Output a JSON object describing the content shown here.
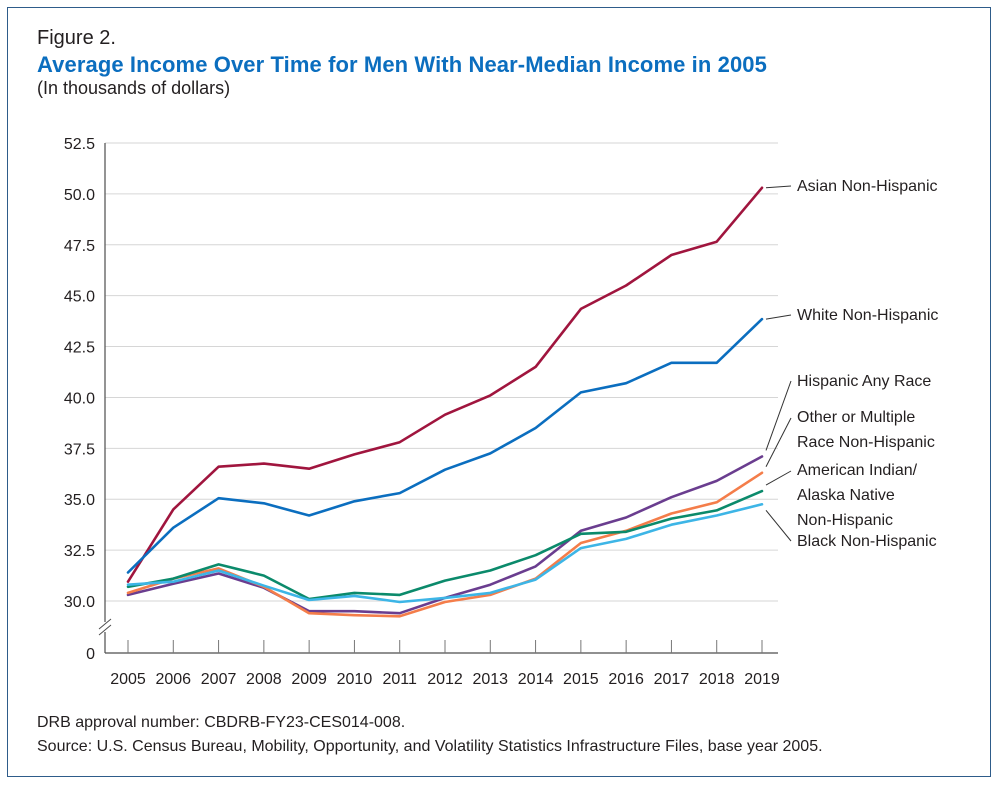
{
  "header": {
    "figure_label": "Figure 2.",
    "title": "Average Income Over Time for Men With Near-Median Income in 2005",
    "subtitle": "(In thousands of dollars)"
  },
  "footer": {
    "approval": "DRB approval number: CBDRB-FY23-CES014-008.",
    "source": "Source: U.S. Census Bureau, Mobility, Opportunity, and Volatility Statistics Infrastructure Files, base year 2005."
  },
  "chart_data": {
    "type": "line",
    "title": "Average Income Over Time for Men With Near-Median Income in 2005",
    "subtitle": "(In thousands of dollars)",
    "xlabel": "",
    "ylabel": "",
    "x": [
      "2005",
      "2006",
      "2007",
      "2008",
      "2009",
      "2010",
      "2011",
      "2012",
      "2013",
      "2014",
      "2015",
      "2016",
      "2017",
      "2018",
      "2019"
    ],
    "y_ticks": [
      "52.5",
      "50.0",
      "47.5",
      "45.0",
      "42.5",
      "40.0",
      "37.5",
      "35.0",
      "32.5",
      "30.0"
    ],
    "y_tick_values": [
      52.5,
      50.0,
      47.5,
      45.0,
      42.5,
      40.0,
      37.5,
      35.0,
      32.5,
      30.0
    ],
    "y_zero_label": "0",
    "ylim": [
      29.0,
      52.5
    ],
    "axis_break": true,
    "grid": true,
    "legend_placement": "right, direct labels at line ends",
    "series": [
      {
        "name": "Asian Non-Hispanic",
        "color": "#a0153e",
        "values": [
          30.95,
          34.5,
          36.6,
          36.75,
          36.5,
          37.2,
          37.8,
          39.15,
          40.1,
          41.5,
          44.35,
          45.5,
          47.0,
          47.65,
          50.3
        ]
      },
      {
        "name": "White Non-Hispanic",
        "color": "#0b6ebf",
        "values": [
          31.4,
          33.6,
          35.05,
          34.8,
          34.2,
          34.9,
          35.3,
          36.45,
          37.25,
          38.5,
          40.25,
          40.7,
          41.7,
          41.7,
          43.85
        ]
      },
      {
        "name": "Hispanic Any Race",
        "color": "#6a3d8f",
        "values": [
          30.3,
          30.85,
          31.35,
          30.65,
          29.5,
          29.5,
          29.4,
          30.15,
          30.8,
          31.7,
          33.45,
          34.1,
          35.1,
          35.9,
          37.1
        ]
      },
      {
        "name": "Other or Multiple Race Non-Hispanic",
        "color": "#f47d4a",
        "values": [
          30.4,
          31.1,
          31.6,
          30.7,
          29.4,
          29.3,
          29.25,
          29.95,
          30.3,
          31.1,
          32.85,
          33.45,
          34.3,
          34.85,
          36.3
        ]
      },
      {
        "name": "American Indian/ Alaska Native Non-Hispanic",
        "color": "#0b8a6b",
        "values": [
          30.7,
          31.1,
          31.8,
          31.25,
          30.1,
          30.4,
          30.3,
          31.0,
          31.5,
          32.25,
          33.3,
          33.4,
          34.05,
          34.45,
          35.4
        ]
      },
      {
        "name": "Black Non-Hispanic",
        "color": "#3db5e6",
        "values": [
          30.8,
          30.95,
          31.5,
          30.75,
          30.05,
          30.25,
          29.95,
          30.15,
          30.4,
          31.05,
          32.6,
          33.05,
          33.75,
          34.2,
          34.75
        ]
      }
    ],
    "legend_labels": [
      {
        "series": 0,
        "lines": [
          "Asian Non-Hispanic"
        ]
      },
      {
        "series": 1,
        "lines": [
          "White Non-Hispanic"
        ]
      },
      {
        "series": 2,
        "lines": [
          "Hispanic Any Race"
        ]
      },
      {
        "series": 3,
        "lines": [
          "Other or Multiple",
          "Race Non-Hispanic"
        ]
      },
      {
        "series": 4,
        "lines": [
          "American Indian/",
          "Alaska Native",
          "Non-Hispanic"
        ]
      },
      {
        "series": 5,
        "lines": [
          "Black Non-Hispanic"
        ]
      }
    ]
  }
}
